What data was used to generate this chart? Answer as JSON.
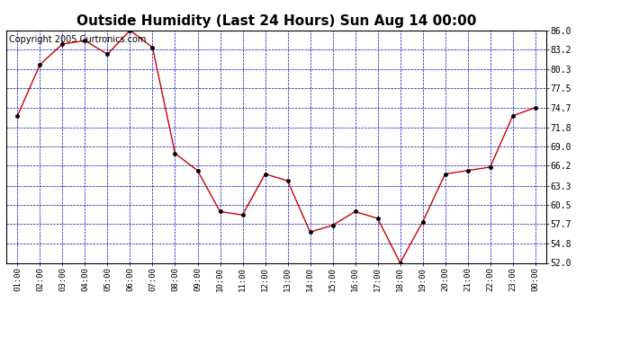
{
  "title": "Outside Humidity (Last 24 Hours) Sun Aug 14 00:00",
  "copyright": "Copyright 2005 Curtronics.com",
  "x_labels": [
    "01:00",
    "02:00",
    "03:00",
    "04:00",
    "05:00",
    "06:00",
    "07:00",
    "08:00",
    "09:00",
    "10:00",
    "11:00",
    "12:00",
    "13:00",
    "14:00",
    "15:00",
    "16:00",
    "17:00",
    "18:00",
    "19:00",
    "20:00",
    "21:00",
    "22:00",
    "23:00",
    "00:00"
  ],
  "y_values": [
    73.5,
    81.0,
    84.0,
    84.5,
    82.5,
    86.0,
    83.5,
    68.0,
    65.5,
    59.5,
    59.0,
    65.0,
    64.0,
    56.5,
    57.5,
    59.5,
    58.5,
    52.0,
    58.0,
    65.0,
    65.5,
    66.0,
    73.5,
    74.7
  ],
  "ylim": [
    52.0,
    86.0
  ],
  "y_ticks": [
    52.0,
    54.8,
    57.7,
    60.5,
    63.3,
    66.2,
    69.0,
    71.8,
    74.7,
    77.5,
    80.3,
    83.2,
    86.0
  ],
  "line_color": "#cc0000",
  "marker_color": "#000000",
  "bg_color": "#ffffff",
  "plot_bg_color": "#ffffff",
  "grid_color": "#0000bb",
  "title_color": "#000000",
  "title_fontsize": 11,
  "copyright_fontsize": 7
}
